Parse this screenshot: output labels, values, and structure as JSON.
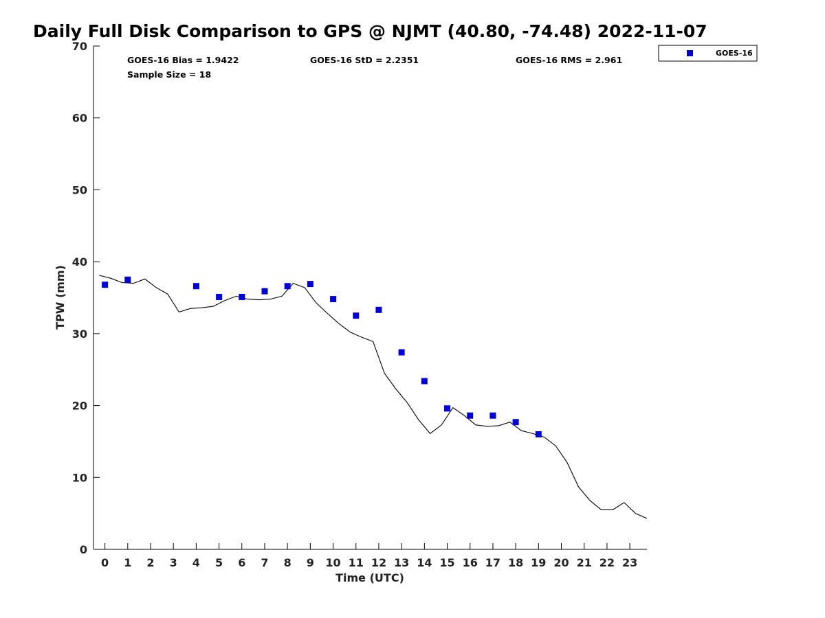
{
  "title": "Daily Full Disk Comparison to GPS @ NJMT (40.80, -74.48) 2022-11-07",
  "stats": {
    "bias": "GOES-16 Bias = 1.9422",
    "std": "GOES-16 StD = 2.2351",
    "rms": "GOES-16 RMS = 2.961",
    "sample_size": "Sample Size = 18"
  },
  "legend": {
    "label": "GOES-16",
    "position": "top-right"
  },
  "colors": {
    "goes": "#0000dd",
    "gps_line": "#000000",
    "axes": "#000000"
  },
  "chart_data": {
    "type": "scatter",
    "xlabel": "Time (UTC)",
    "ylabel": "TPW (mm)",
    "xlim": [
      -0.5,
      23.75
    ],
    "ylim": [
      0,
      70
    ],
    "x_ticks": [
      0,
      1,
      2,
      3,
      4,
      5,
      6,
      7,
      8,
      9,
      10,
      11,
      12,
      13,
      14,
      15,
      16,
      17,
      18,
      19,
      20,
      21,
      22,
      23
    ],
    "x_tick_labels": [
      "0",
      "1",
      "2",
      "3",
      "4",
      "5",
      "6",
      "7",
      "8",
      "9",
      "10",
      "11",
      "12",
      "13",
      "14",
      "15",
      "16",
      "17",
      "18",
      "19",
      "20",
      "21",
      "22",
      "23"
    ],
    "y_ticks": [
      0,
      10,
      20,
      30,
      40,
      50,
      60,
      70
    ],
    "y_tick_labels": [
      "0",
      "10",
      "20",
      "30",
      "40",
      "50",
      "60",
      "70"
    ],
    "grid": false,
    "series": [
      {
        "name": "GOES-16",
        "kind": "scatter",
        "x": [
          0,
          1,
          4,
          5,
          6,
          7,
          8,
          9,
          10,
          11,
          12,
          13,
          14,
          15,
          16,
          17,
          18,
          19
        ],
        "y": [
          36.8,
          37.5,
          36.6,
          35.1,
          35.1,
          35.9,
          36.6,
          36.9,
          34.8,
          32.5,
          33.3,
          27.4,
          23.4,
          19.6,
          18.6,
          18.6,
          17.7,
          16.0
        ]
      },
      {
        "kind": "line",
        "x": [
          -0.25,
          0.25,
          0.75,
          1.25,
          1.75,
          2.25,
          2.75,
          3.25,
          3.75,
          4.25,
          4.75,
          5.25,
          5.75,
          6.25,
          6.75,
          7.25,
          7.75,
          8.25,
          8.75,
          9.25,
          9.75,
          10.25,
          10.75,
          11.25,
          11.75,
          12.25,
          12.75,
          13.25,
          13.75,
          14.25,
          14.75,
          15.25,
          15.75,
          16.25,
          16.75,
          17.25,
          17.75,
          18.25,
          18.75,
          19.25,
          19.75,
          20.25,
          20.75,
          21.25,
          21.75,
          22.25,
          22.75,
          23.25,
          23.75
        ],
        "y": [
          38.1,
          37.7,
          37.1,
          37.0,
          37.6,
          36.4,
          35.5,
          33.0,
          33.5,
          33.6,
          33.8,
          34.6,
          35.2,
          34.8,
          34.7,
          34.8,
          35.2,
          37.0,
          36.4,
          34.3,
          32.8,
          31.4,
          30.2,
          29.5,
          28.9,
          24.5,
          22.3,
          20.4,
          18.0,
          16.1,
          17.3,
          19.7,
          18.6,
          17.3,
          17.1,
          17.2,
          17.7,
          16.5,
          16.1,
          15.6,
          14.4,
          12.1,
          8.7,
          6.8,
          5.5,
          5.5,
          6.5,
          5.0,
          4.3
        ]
      }
    ]
  }
}
